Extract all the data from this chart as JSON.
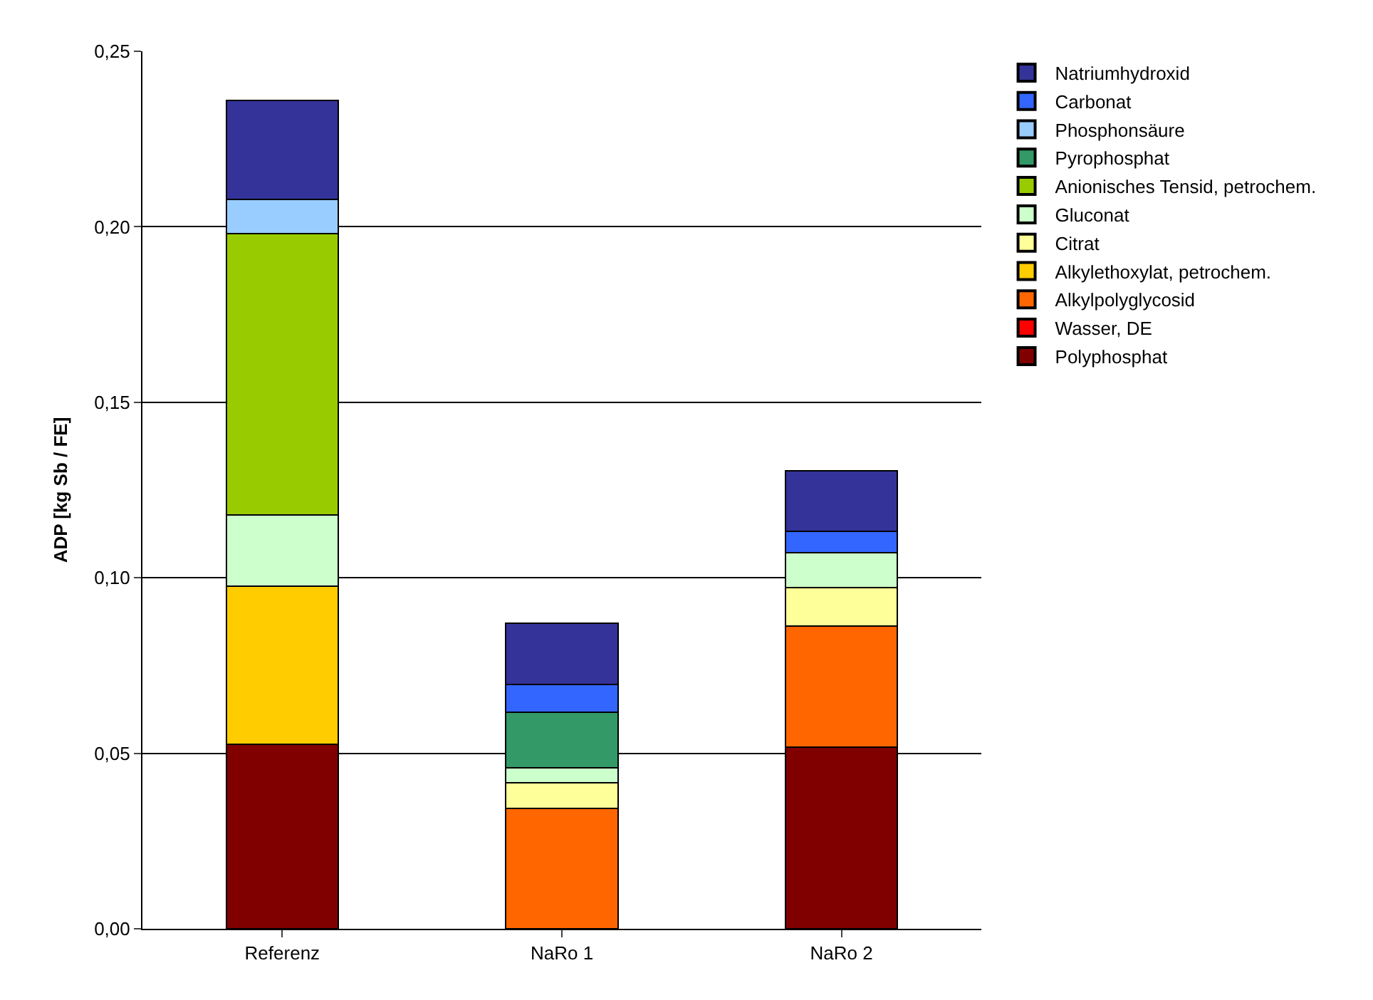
{
  "chart_data": {
    "type": "bar",
    "stacked": true,
    "ylabel": "ADP [kg Sb / FE]",
    "categories": [
      "Referenz",
      "NaRo 1",
      "NaRo 2"
    ],
    "series": [
      {
        "name": "Polyphosphat",
        "color": "#800000",
        "values": [
          0.0525,
          null,
          0.0517
        ]
      },
      {
        "name": "Wasser, DE",
        "color": "#ff0000",
        "values": [
          null,
          null,
          null
        ]
      },
      {
        "name": "Alkylpolyglycosid",
        "color": "#ff6600",
        "values": [
          null,
          0.0342,
          0.0346
        ]
      },
      {
        "name": "Alkylethoxylat, petrochem.",
        "color": "#ffcc00",
        "values": [
          0.0451,
          null,
          null
        ]
      },
      {
        "name": "Citrat",
        "color": "#ffff99",
        "values": [
          null,
          0.0075,
          0.011
        ]
      },
      {
        "name": "Gluconat",
        "color": "#ccffcc",
        "values": [
          0.0204,
          0.0041,
          0.0099
        ]
      },
      {
        "name": "Anionisches Tensid, petrochem.",
        "color": "#99cc00",
        "values": [
          0.08,
          null,
          null
        ]
      },
      {
        "name": "Pyrophosphat",
        "color": "#339966",
        "values": [
          null,
          0.0159,
          null
        ]
      },
      {
        "name": "Phosphonsäure",
        "color": "#99ccff",
        "values": [
          0.0097,
          null,
          null
        ]
      },
      {
        "name": "Carbonat",
        "color": "#3366ff",
        "values": [
          null,
          0.008,
          0.0061
        ]
      },
      {
        "name": "Natriumhydroxid",
        "color": "#333399",
        "values": [
          0.0283,
          0.0173,
          0.0171
        ]
      }
    ],
    "ylim": [
      0,
      0.25
    ],
    "yticks": [
      {
        "value": 0,
        "label": "0,00"
      },
      {
        "value": 0.05,
        "label": "0,05"
      },
      {
        "value": 0.1,
        "label": "0,10"
      },
      {
        "value": 0.15,
        "label": "0,15"
      },
      {
        "value": 0.2,
        "label": "0,20"
      },
      {
        "value": 0.25,
        "label": "0,25"
      }
    ],
    "grid": "y",
    "legend": "right"
  }
}
